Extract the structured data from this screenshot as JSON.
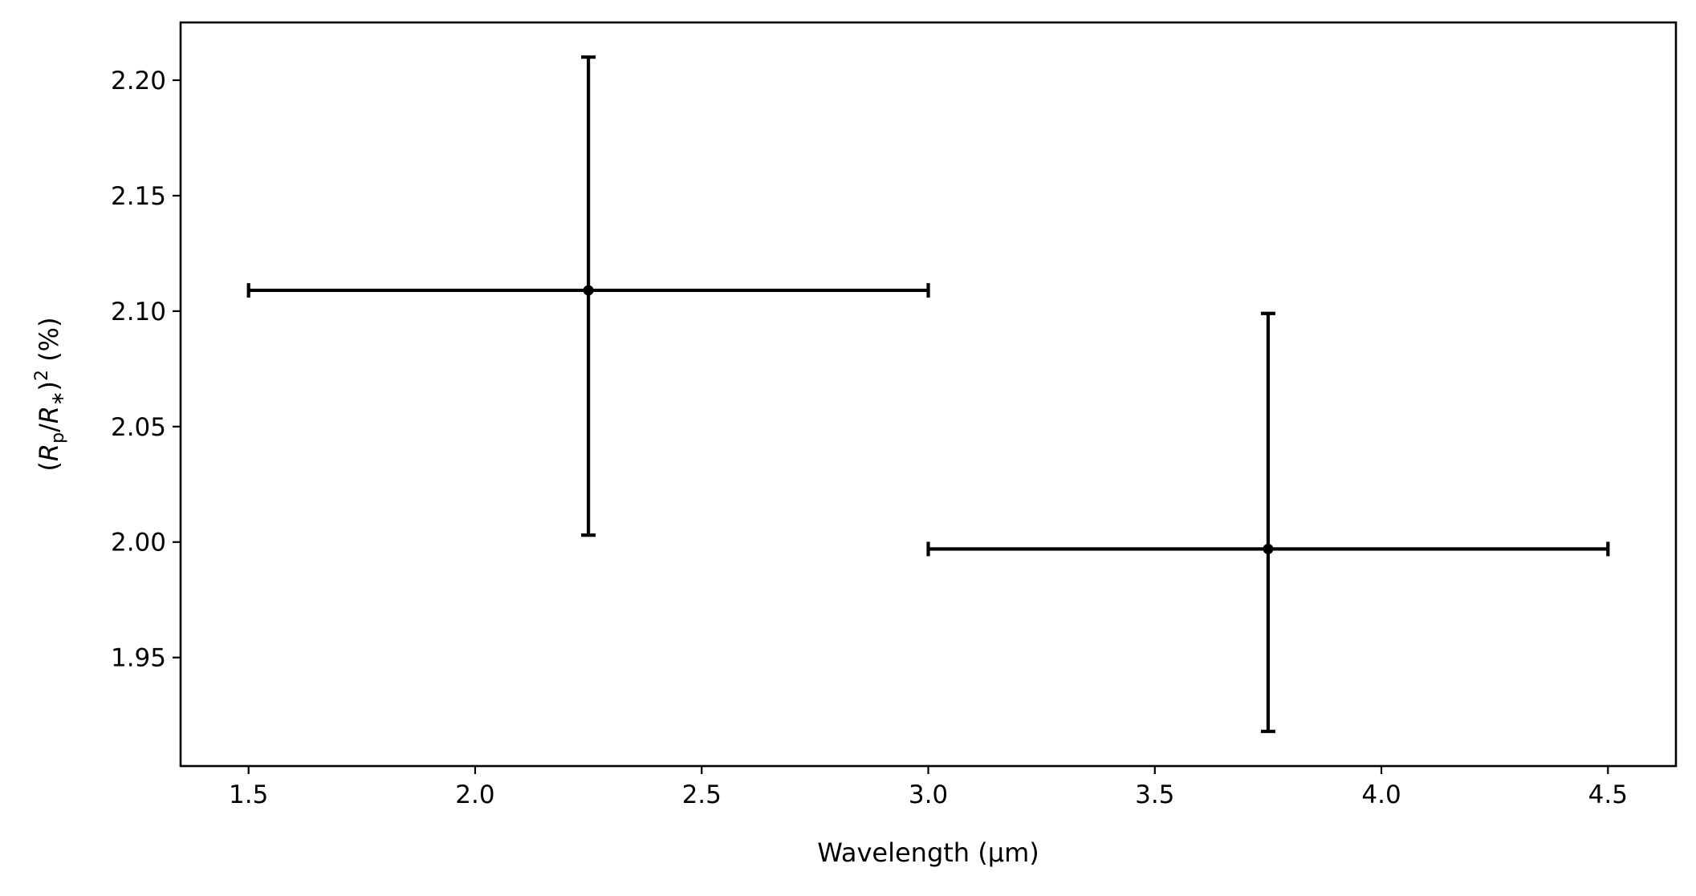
{
  "chart_data": {
    "type": "scatter",
    "title": "",
    "xlabel": "Wavelength (μm)",
    "ylabel": {
      "open": "(",
      "r1": "R",
      "sub1": "p",
      "slash": "/",
      "r2": "R",
      "sub2": "∗",
      "close": ")",
      "sup": "2",
      "unit": " (%)"
    },
    "xlim": [
      1.35,
      4.65
    ],
    "ylim": [
      1.903,
      2.225
    ],
    "xticks": [
      "1.5",
      "2.0",
      "2.5",
      "3.0",
      "3.5",
      "4.0",
      "4.5"
    ],
    "yticks": [
      "1.95",
      "2.00",
      "2.05",
      "2.10",
      "2.15",
      "2.20"
    ],
    "grid": false,
    "legend": "none",
    "color": "#000000",
    "points": [
      {
        "x": 2.25,
        "y": 2.109,
        "xerr": 0.75,
        "yerr": [
          0.106,
          0.101
        ]
      },
      {
        "x": 3.75,
        "y": 1.997,
        "xerr": 0.75,
        "yerr": [
          0.079,
          0.102
        ]
      }
    ]
  }
}
